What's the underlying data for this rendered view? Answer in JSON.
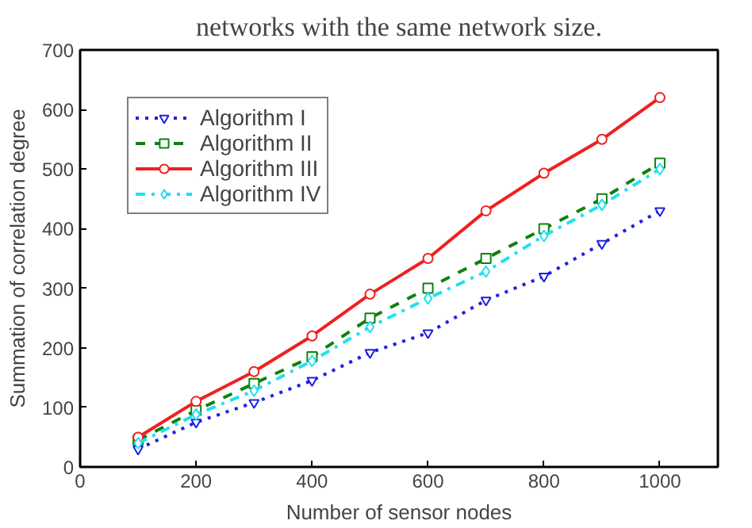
{
  "chart_data": {
    "type": "line",
    "xlabel": "Number of sensor nodes",
    "ylabel": "Summation of correlation degree",
    "annotations": [
      "networks with the same network size."
    ],
    "x": [
      100,
      200,
      300,
      400,
      500,
      600,
      700,
      800,
      900,
      1000
    ],
    "xlim": [
      0,
      1100
    ],
    "xticks": [
      0,
      200,
      400,
      600,
      800,
      1000
    ],
    "ylim": [
      0,
      700
    ],
    "yticks": [
      0,
      100,
      200,
      300,
      400,
      500,
      600,
      700
    ],
    "grid": false,
    "legend": "top left",
    "series": [
      {
        "name": "Algorithm I",
        "color": "#2020e0",
        "marker": "triangle",
        "line_style": "dotted",
        "values": [
          30,
          75,
          108,
          145,
          192,
          225,
          280,
          320,
          375,
          430
        ]
      },
      {
        "name": "Algorithm II",
        "color": "#108010",
        "marker": "square",
        "line_style": "dashed",
        "values": [
          45,
          95,
          140,
          185,
          250,
          300,
          350,
          400,
          450,
          510
        ]
      },
      {
        "name": "Algorithm III",
        "color": "#f02020",
        "marker": "circle",
        "line_style": "solid",
        "values": [
          50,
          110,
          160,
          220,
          290,
          350,
          430,
          493,
          550,
          620
        ]
      },
      {
        "name": "Algorithm IV",
        "color": "#20e0f0",
        "marker": "diamond",
        "line_style": "dashdot",
        "values": [
          40,
          88,
          128,
          178,
          235,
          283,
          328,
          388,
          440,
          500
        ]
      }
    ]
  }
}
